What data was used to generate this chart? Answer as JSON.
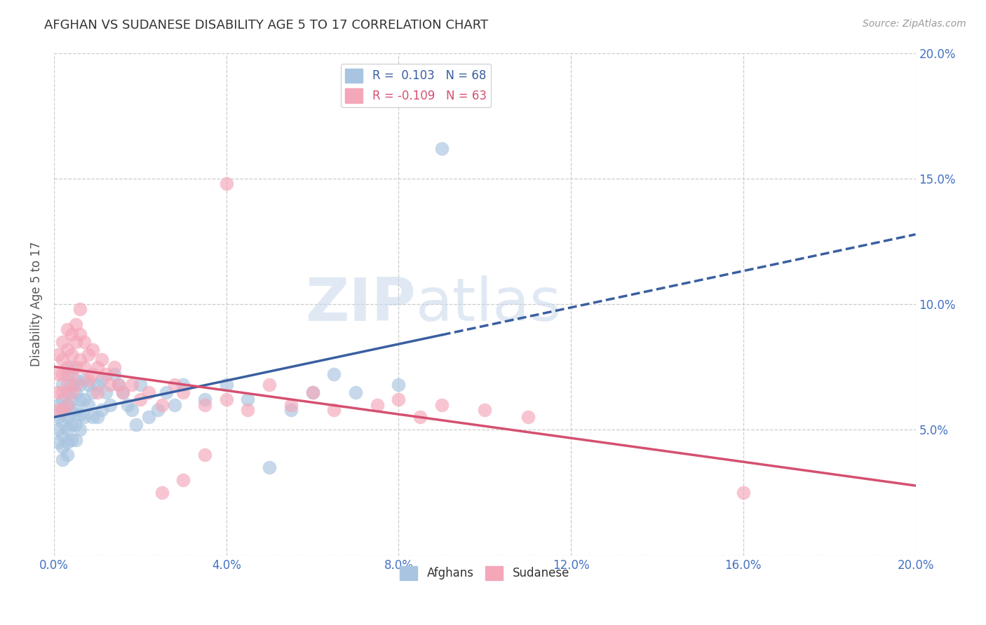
{
  "title": "AFGHAN VS SUDANESE DISABILITY AGE 5 TO 17 CORRELATION CHART",
  "source": "Source: ZipAtlas.com",
  "ylabel": "Disability Age 5 to 17",
  "xlim": [
    0.0,
    0.2
  ],
  "ylim": [
    0.0,
    0.2
  ],
  "xtick_vals": [
    0.0,
    0.04,
    0.08,
    0.12,
    0.16,
    0.2
  ],
  "ytick_vals": [
    0.0,
    0.05,
    0.1,
    0.15,
    0.2
  ],
  "legend_afghan": "R =  0.103   N = 68",
  "legend_sudanese": "R = -0.109   N = 63",
  "afghan_color": "#a8c4e0",
  "sudanese_color": "#f4a7b9",
  "afghan_line_color": "#3a5fa0",
  "sudanese_line_color": "#d45070",
  "background_color": "#ffffff",
  "grid_color": "#cccccc",
  "title_color": "#333333",
  "axis_label_color": "#555555",
  "tick_label_color": "#4472c4",
  "watermark_zip": "ZIP",
  "watermark_atlas": "atlas",
  "afghan_x": [
    0.001,
    0.001,
    0.001,
    0.001,
    0.002,
    0.002,
    0.002,
    0.002,
    0.002,
    0.002,
    0.002,
    0.003,
    0.003,
    0.003,
    0.003,
    0.003,
    0.003,
    0.003,
    0.004,
    0.004,
    0.004,
    0.004,
    0.004,
    0.004,
    0.005,
    0.005,
    0.005,
    0.005,
    0.005,
    0.006,
    0.006,
    0.006,
    0.006,
    0.007,
    0.007,
    0.007,
    0.008,
    0.008,
    0.009,
    0.009,
    0.01,
    0.01,
    0.011,
    0.011,
    0.012,
    0.013,
    0.014,
    0.015,
    0.016,
    0.017,
    0.018,
    0.019,
    0.02,
    0.022,
    0.024,
    0.026,
    0.028,
    0.03,
    0.035,
    0.04,
    0.045,
    0.05,
    0.055,
    0.06,
    0.065,
    0.07,
    0.08,
    0.09
  ],
  "afghan_y": [
    0.06,
    0.055,
    0.05,
    0.045,
    0.068,
    0.062,
    0.058,
    0.053,
    0.048,
    0.043,
    0.038,
    0.072,
    0.065,
    0.06,
    0.055,
    0.05,
    0.045,
    0.04,
    0.075,
    0.068,
    0.062,
    0.057,
    0.052,
    0.046,
    0.07,
    0.065,
    0.058,
    0.052,
    0.046,
    0.068,
    0.062,
    0.056,
    0.05,
    0.07,
    0.062,
    0.055,
    0.068,
    0.06,
    0.065,
    0.055,
    0.068,
    0.055,
    0.07,
    0.058,
    0.065,
    0.06,
    0.072,
    0.068,
    0.065,
    0.06,
    0.058,
    0.052,
    0.068,
    0.055,
    0.058,
    0.065,
    0.06,
    0.068,
    0.062,
    0.068,
    0.062,
    0.035,
    0.058,
    0.065,
    0.072,
    0.065,
    0.068,
    0.162
  ],
  "sudanese_x": [
    0.001,
    0.001,
    0.001,
    0.001,
    0.002,
    0.002,
    0.002,
    0.002,
    0.002,
    0.003,
    0.003,
    0.003,
    0.003,
    0.003,
    0.004,
    0.004,
    0.004,
    0.004,
    0.005,
    0.005,
    0.005,
    0.005,
    0.006,
    0.006,
    0.006,
    0.007,
    0.007,
    0.008,
    0.008,
    0.009,
    0.009,
    0.01,
    0.01,
    0.011,
    0.012,
    0.013,
    0.014,
    0.015,
    0.016,
    0.018,
    0.02,
    0.022,
    0.025,
    0.028,
    0.03,
    0.035,
    0.04,
    0.045,
    0.05,
    0.055,
    0.06,
    0.065,
    0.075,
    0.08,
    0.085,
    0.09,
    0.1,
    0.11,
    0.16,
    0.03,
    0.035,
    0.04,
    0.025
  ],
  "sudanese_y": [
    0.08,
    0.072,
    0.065,
    0.058,
    0.085,
    0.078,
    0.072,
    0.065,
    0.058,
    0.09,
    0.082,
    0.075,
    0.068,
    0.06,
    0.088,
    0.08,
    0.072,
    0.065,
    0.092,
    0.085,
    0.075,
    0.068,
    0.098,
    0.088,
    0.078,
    0.085,
    0.075,
    0.08,
    0.07,
    0.082,
    0.072,
    0.075,
    0.065,
    0.078,
    0.072,
    0.068,
    0.075,
    0.068,
    0.065,
    0.068,
    0.062,
    0.065,
    0.06,
    0.068,
    0.065,
    0.06,
    0.062,
    0.058,
    0.068,
    0.06,
    0.065,
    0.058,
    0.06,
    0.062,
    0.055,
    0.06,
    0.058,
    0.055,
    0.025,
    0.03,
    0.04,
    0.148,
    0.025
  ]
}
